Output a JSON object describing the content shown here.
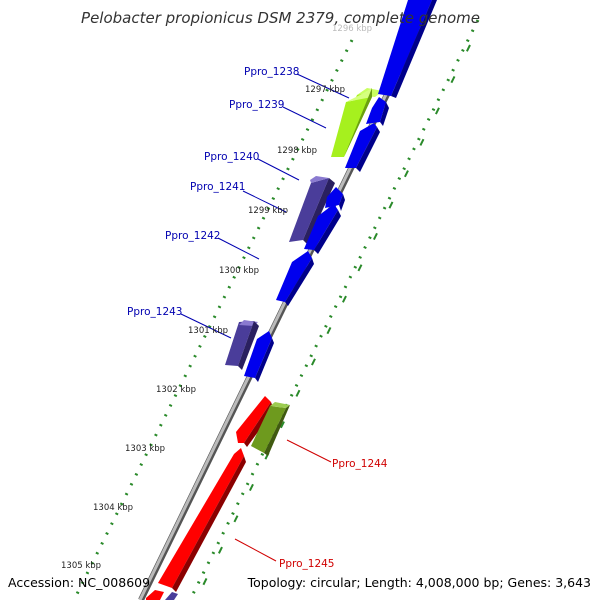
{
  "title": "Pelobacter propionicus DSM 2379, complete genome",
  "footer": {
    "accession": "Accession: NC_008609",
    "summary": "Topology: circular; Length: 4,008,000 bp; Genes: 3,643"
  },
  "scale_labels": [
    {
      "text": "1296 kbp",
      "faded": true
    },
    {
      "text": "1297 kbp"
    },
    {
      "text": "1298 kbp"
    },
    {
      "text": "1299 kbp"
    },
    {
      "text": "1300 kbp"
    },
    {
      "text": "1301 kbp"
    },
    {
      "text": "1302 kbp"
    },
    {
      "text": "1303 kbp"
    },
    {
      "text": "1304 kbp"
    },
    {
      "text": "1305 kbp"
    }
  ],
  "gene_labels": [
    {
      "text": "Ppro_1238",
      "color": "#0000b0"
    },
    {
      "text": "Ppro_1239",
      "color": "#0000b0"
    },
    {
      "text": "Ppro_1240",
      "color": "#0000b0"
    },
    {
      "text": "Ppro_1241",
      "color": "#0000b0"
    },
    {
      "text": "Ppro_1242",
      "color": "#0000b0"
    },
    {
      "text": "Ppro_1243",
      "color": "#0000b0"
    },
    {
      "text": "Ppro_1244",
      "color": "#d00000"
    },
    {
      "text": "Ppro_1245",
      "color": "#d00000"
    }
  ],
  "colors": {
    "blue_gene": "#0000ee",
    "blue_gene_side": "#00008a",
    "purple_gene": "#4a3d9a",
    "purple_gene_side": "#2a2060",
    "lime_gene": "#a6f01e",
    "lime_gene_side": "#6aa010",
    "olive_gene": "#6e9a1e",
    "olive_gene_side": "#405a10",
    "red_gene": "#ff0000",
    "red_gene_side": "#8a0000",
    "backbone": "#999999",
    "gc_dots": "#2a8a2a",
    "label_line_blue": "#0000b0",
    "label_line_red": "#d00000"
  }
}
